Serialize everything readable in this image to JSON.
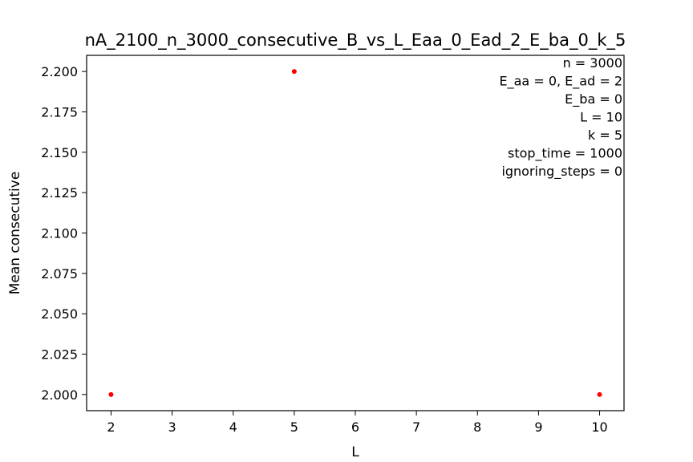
{
  "chart_data": {
    "type": "scatter",
    "title": "nA_2100_n_3000_consecutive_B_vs_L_Eaa_0_Ead_2_E_ba_0_k_5",
    "xlabel": "L",
    "ylabel": "Mean consecutive",
    "xlim": [
      1.6,
      10.4
    ],
    "ylim": [
      1.99,
      2.21
    ],
    "xticks": [
      2,
      3,
      4,
      5,
      6,
      7,
      8,
      9,
      10
    ],
    "yticks": [
      2.0,
      2.025,
      2.05,
      2.075,
      2.1,
      2.125,
      2.15,
      2.175,
      2.2
    ],
    "ytick_labels": [
      "2.000",
      "2.025",
      "2.050",
      "2.075",
      "2.100",
      "2.125",
      "2.150",
      "2.175",
      "2.200"
    ],
    "grid": false,
    "point_color": "#ff0000",
    "points": [
      {
        "x": 2,
        "y": 2.0
      },
      {
        "x": 5,
        "y": 2.2
      },
      {
        "x": 10,
        "y": 2.0
      }
    ],
    "annotation_lines": [
      "n = 3000",
      "E_aa = 0, E_ad = 2",
      "E_ba = 0",
      "L = 10",
      "k = 5",
      "stop_time = 1000",
      "ignoring_steps = 0"
    ],
    "annotation_position": "top-right"
  }
}
